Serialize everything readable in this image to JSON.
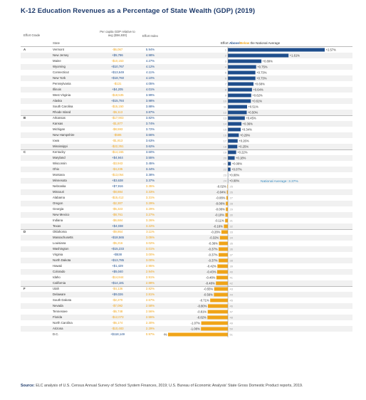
{
  "title": "K-12 Education Revenues as a Percentage of State Wealth (GDP) (2019)",
  "headers": {
    "grade": "Effort Grade",
    "state": "State",
    "pcg": "Per capita GDP relative to avg ($56,930)",
    "index": "Effort Index",
    "legend_prefix": "Effort ",
    "legend_above": "Above",
    "legend_sep": "/",
    "legend_below": "Below",
    "legend_suffix": " the National Average"
  },
  "national_average_label": "National Average: 3.37%",
  "source_label": "Source:",
  "source_text": "ELC analysis of U.S. Census Annual Survey of School System Finances, 2019; U.S. Bureau of Economic Analysis' State Gross Domestic Product reports, 2019.",
  "colors": {
    "above": "#1f4e8c",
    "below": "#f0a418",
    "title": "#1d3a6b"
  },
  "chart_data": {
    "type": "bar",
    "orientation": "horizontal",
    "national_average": 3.37,
    "value_unit": "percentage points difference from national average",
    "ylim": [
      -2.4,
      2.57
    ],
    "rows": [
      {
        "grade": "A",
        "state": "Vermont",
        "pcg": "-$6,067",
        "index": "5.94%",
        "rank": "1",
        "value": 2.57,
        "label": "+2.57%"
      },
      {
        "grade": "",
        "state": "New Jersey",
        "pcg": "+$5,786",
        "index": "4.98%",
        "rank": "2",
        "value": 1.61,
        "label": "+1.61%"
      },
      {
        "grade": "",
        "state": "Maine",
        "pcg": "-$10,153",
        "index": "4.27%",
        "rank": "3",
        "value": 0.89,
        "label": "+0.89%"
      },
      {
        "grade": "",
        "state": "Wyoming",
        "pcg": "+$10,767",
        "index": "4.12%",
        "rank": "4",
        "value": 0.75,
        "label": "+0.75%"
      },
      {
        "grade": "",
        "state": "Connecticut",
        "pcg": "+$13,649",
        "index": "4.11%",
        "rank": "5",
        "value": 0.73,
        "label": "+0.73%"
      },
      {
        "grade": "",
        "state": "New York",
        "pcg": "+$18,760",
        "index": "4.10%",
        "rank": "6",
        "value": 0.73,
        "label": "+0.73%"
      },
      {
        "grade": "",
        "state": "Pennsylvania",
        "pcg": "-$131",
        "index": "4.05%",
        "rank": "7",
        "value": 0.68,
        "label": "+0.68%"
      },
      {
        "grade": "",
        "state": "Illinois",
        "pcg": "+$4,205",
        "index": "4.01%",
        "rank": "8",
        "value": 0.64,
        "label": "+0.64%"
      },
      {
        "grade": "",
        "state": "West Virginia",
        "pcg": "-$18,535",
        "index": "3.99%",
        "rank": "9",
        "value": 0.62,
        "label": "+0.62%"
      },
      {
        "grade": "",
        "state": "Alaska",
        "pcg": "+$15,784",
        "index": "3.98%",
        "rank": "10",
        "value": 0.61,
        "label": "+0.61%"
      },
      {
        "grade": "",
        "state": "South Carolina",
        "pcg": "-$15,150",
        "index": "3.88%",
        "rank": "11",
        "value": 0.51,
        "label": "+0.51%"
      },
      {
        "grade": "",
        "state": "Rhode Island",
        "pcg": "-$6,113",
        "index": "3.87%",
        "rank": "12",
        "value": 0.5,
        "label": "+0.50%"
      },
      {
        "grade": "B",
        "state": "Arkansas",
        "pcg": "-$17,903",
        "index": "3.82%",
        "rank": "13",
        "value": 0.45,
        "label": "+0.45%"
      },
      {
        "grade": "",
        "state": "Kansas",
        "pcg": "-$1,877",
        "index": "3.74%",
        "rank": "14",
        "value": 0.36,
        "label": "+0.36%"
      },
      {
        "grade": "",
        "state": "Michigan",
        "pcg": "-$8,593",
        "index": "3.72%",
        "rank": "15",
        "value": 0.34,
        "label": "+0.34%"
      },
      {
        "grade": "",
        "state": "New Hampshire",
        "pcg": "-$586",
        "index": "3.66%",
        "rank": "16",
        "value": 0.29,
        "label": "+0.29%"
      },
      {
        "grade": "",
        "state": "Iowa",
        "pcg": "-$1,813",
        "index": "3.63%",
        "rank": "17",
        "value": 0.26,
        "label": "+0.26%"
      },
      {
        "grade": "",
        "state": "Mississippi",
        "pcg": "-$22,351",
        "index": "3.62%",
        "rank": "18",
        "value": 0.25,
        "label": "+0.25%"
      },
      {
        "grade": "C",
        "state": "Kentucky",
        "pcg": "-$14,165",
        "index": "3.60%",
        "rank": "19",
        "value": 0.22,
        "label": "+0.22%"
      },
      {
        "grade": "",
        "state": "Maryland",
        "pcg": "+$4,944",
        "index": "3.55%",
        "rank": "20",
        "value": 0.18,
        "label": "+0.18%"
      },
      {
        "grade": "",
        "state": "Wisconsin",
        "pcg": "-$3,943",
        "index": "3.45%",
        "rank": "21",
        "value": 0.08,
        "label": "+0.08%"
      },
      {
        "grade": "",
        "state": "Ohio",
        "pcg": "-$4,235",
        "index": "3.44%",
        "rank": "22",
        "value": 0.07,
        "label": "+0.07%"
      },
      {
        "grade": "",
        "state": "Montana",
        "pcg": "-$13,054",
        "index": "3.38%",
        "rank": "23",
        "value": 0.0,
        "label": "+0.00%"
      },
      {
        "grade": "",
        "state": "Minnesota",
        "pcg": "+$3,638",
        "index": "3.37%",
        "rank": "24",
        "value": 0.0,
        "label": "+0.00%"
      },
      {
        "grade": "",
        "state": "Nebraska",
        "pcg": "+$7,916",
        "index": "3.35%",
        "rank": "25",
        "value": -0.02,
        "label": "-0.02%"
      },
      {
        "grade": "",
        "state": "Missouri",
        "pcg": "-$8,884",
        "index": "3.33%",
        "rank": "26",
        "value": -0.04,
        "label": "-0.04%"
      },
      {
        "grade": "",
        "state": "Alabama",
        "pcg": "-$15,412",
        "index": "3.31%",
        "rank": "27",
        "value": -0.06,
        "label": "-0.06%"
      },
      {
        "grade": "",
        "state": "Oregon",
        "pcg": "-$2,307",
        "index": "3.29%",
        "rank": "28",
        "value": -0.08,
        "label": "-0.08%"
      },
      {
        "grade": "",
        "state": "Georgia",
        "pcg": "-$5,323",
        "index": "3.29%",
        "rank": "29",
        "value": -0.08,
        "label": "-0.08%"
      },
      {
        "grade": "",
        "state": "New Mexico",
        "pcg": "-$8,761",
        "index": "3.27%",
        "rank": "30",
        "value": -0.1,
        "label": "-0.10%"
      },
      {
        "grade": "",
        "state": "Indiana",
        "pcg": "-$6,684",
        "index": "3.26%",
        "rank": "31",
        "value": -0.11,
        "label": "-0.11%"
      },
      {
        "grade": "",
        "state": "Texas",
        "pcg": "+$4,038",
        "index": "3.22%",
        "rank": "32",
        "value": -0.16,
        "label": "-0.16%"
      },
      {
        "grade": "D",
        "state": "Oklahoma",
        "pcg": "-$9,864",
        "index": "3.11%",
        "rank": "33",
        "value": -0.26,
        "label": "-0.26%"
      },
      {
        "grade": "",
        "state": "Massachusetts",
        "pcg": "+$18,565",
        "index": "3.05%",
        "rank": "34",
        "value": -0.32,
        "label": "-0.32%"
      },
      {
        "grade": "",
        "state": "Louisiana",
        "pcg": "-$5,216",
        "index": "3.02%",
        "rank": "35",
        "value": -0.36,
        "label": "-0.36%"
      },
      {
        "grade": "",
        "state": "Washington",
        "pcg": "+$15,233",
        "index": "3.01%",
        "rank": "36",
        "value": -0.37,
        "label": "-0.37%"
      },
      {
        "grade": "",
        "state": "Virginia",
        "pcg": "+$538",
        "index": "3.00%",
        "rank": "37",
        "value": -0.37,
        "label": "-0.37%"
      },
      {
        "grade": "",
        "state": "North Dakota",
        "pcg": "+$13,785",
        "index": "3.00%",
        "rank": "38",
        "value": -0.37,
        "label": "-0.37%"
      },
      {
        "grade": "",
        "state": "Hawaii",
        "pcg": "+$1,429",
        "index": "2.95%",
        "rank": "39",
        "value": -0.42,
        "label": "-0.42%"
      },
      {
        "grade": "",
        "state": "Colorado",
        "pcg": "+$5,040",
        "index": "2.94%",
        "rank": "40",
        "value": -0.43,
        "label": "-0.43%"
      },
      {
        "grade": "",
        "state": "Idaho",
        "pcg": "-$14,844",
        "index": "2.91%",
        "rank": "41",
        "value": -0.46,
        "label": "-0.46%"
      },
      {
        "grade": "",
        "state": "California",
        "pcg": "+$14,181",
        "index": "2.88%",
        "rank": "42",
        "value": -0.48,
        "label": "-0.48%"
      },
      {
        "grade": "F",
        "state": "Utah",
        "pcg": "-$4,136",
        "index": "2.82%",
        "rank": "43",
        "value": -0.55,
        "label": "-0.55%"
      },
      {
        "grade": "",
        "state": "Delaware",
        "pcg": "+$9,026",
        "index": "2.81%",
        "rank": "44",
        "value": -0.56,
        "label": "-0.56%"
      },
      {
        "grade": "",
        "state": "South Dakota",
        "pcg": "-$2,270",
        "index": "2.67%",
        "rank": "45",
        "value": -0.71,
        "label": "-0.71%"
      },
      {
        "grade": "",
        "state": "Nevada",
        "pcg": "-$7,092",
        "index": "2.58%",
        "rank": "46",
        "value": -0.8,
        "label": "-0.80%"
      },
      {
        "grade": "",
        "state": "Tennessee",
        "pcg": "-$6,748",
        "index": "2.56%",
        "rank": "47",
        "value": -0.81,
        "label": "-0.81%"
      },
      {
        "grade": "",
        "state": "Florida",
        "pcg": "-$12,073",
        "index": "2.55%",
        "rank": "48",
        "value": -0.82,
        "label": "-0.82%"
      },
      {
        "grade": "",
        "state": "North Carolina",
        "pcg": "-$6,174",
        "index": "2.30%",
        "rank": "49",
        "value": -1.07,
        "label": "-1.07%"
      },
      {
        "grade": "",
        "state": "Arizona",
        "pcg": "-$10,483",
        "index": "2.29%",
        "rank": "50",
        "value": -1.08,
        "label": "-1.08%"
      },
      {
        "grade": "",
        "state": "D.C.",
        "pcg": "+$118,149",
        "index": "0.97%",
        "rank": "51",
        "value": -2.4,
        "label": "-2.40%"
      }
    ]
  }
}
